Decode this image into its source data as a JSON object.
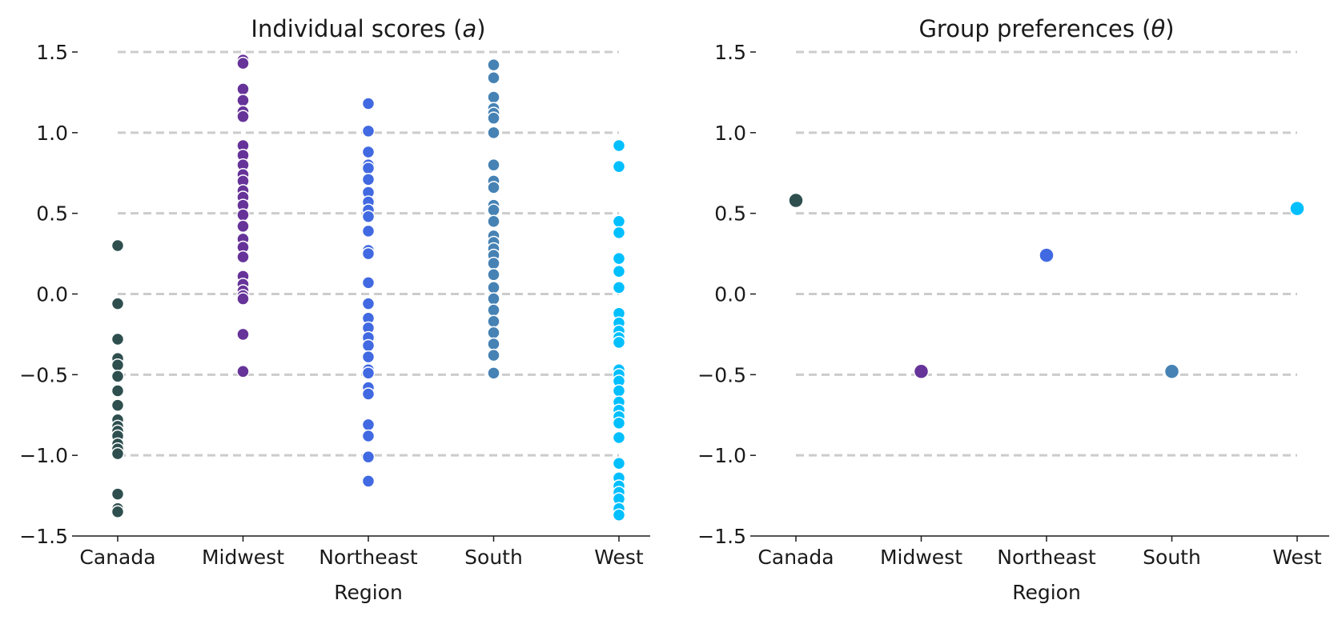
{
  "chart_data": [
    {
      "type": "scatter",
      "title": "Individual scores (a)",
      "title_plain": "Individual scores (",
      "title_symbol": "a",
      "title_close": ")",
      "xlabel": "Region",
      "ylabel": "",
      "categories": [
        "Canada",
        "Midwest",
        "Northeast",
        "South",
        "West"
      ],
      "ylim": [
        -1.5,
        1.5
      ],
      "yticks": [
        "1.5",
        "1.0",
        "0.5",
        "0.0",
        "−0.5",
        "−1.0",
        "−1.5"
      ],
      "ytick_values": [
        1.5,
        1.0,
        0.5,
        0.0,
        -0.5,
        -1.0,
        -1.5
      ],
      "grid": "horizontal dashed at 1.5, 1.0, 0.5, 0.0, -0.5, -1.0",
      "legend": "none",
      "colors": {
        "Canada": "#2f4f4f",
        "Midwest": "#663399",
        "Northeast": "#4169e1",
        "South": "#4682b4",
        "West": "#00bfff"
      },
      "series": [
        {
          "category": "Canada",
          "values": [
            0.3,
            -0.06,
            -0.28,
            -0.4,
            -0.44,
            -0.51,
            -0.6,
            -0.69,
            -0.78,
            -0.82,
            -0.85,
            -0.88,
            -0.93,
            -0.96,
            -0.99,
            -1.24,
            -1.33,
            -1.35
          ]
        },
        {
          "category": "Midwest",
          "values": [
            1.45,
            1.43,
            1.27,
            1.2,
            1.13,
            1.1,
            0.92,
            0.86,
            0.8,
            0.74,
            0.7,
            0.64,
            0.6,
            0.55,
            0.49,
            0.42,
            0.34,
            0.29,
            0.23,
            0.11,
            0.06,
            0.02,
            -0.01,
            -0.03,
            -0.25,
            -0.48
          ]
        },
        {
          "category": "Northeast",
          "values": [
            1.18,
            1.01,
            0.88,
            0.8,
            0.78,
            0.71,
            0.63,
            0.57,
            0.52,
            0.48,
            0.39,
            0.27,
            0.25,
            0.07,
            -0.06,
            -0.15,
            -0.21,
            -0.27,
            -0.32,
            -0.39,
            -0.47,
            -0.49,
            -0.58,
            -0.62,
            -0.81,
            -0.88,
            -1.01,
            -1.16
          ]
        },
        {
          "category": "South",
          "values": [
            1.42,
            1.34,
            1.22,
            1.15,
            1.12,
            1.09,
            1.0,
            0.8,
            0.7,
            0.66,
            0.55,
            0.52,
            0.45,
            0.36,
            0.32,
            0.28,
            0.24,
            0.19,
            0.12,
            0.04,
            -0.03,
            -0.1,
            -0.17,
            -0.24,
            -0.31,
            -0.38,
            -0.49
          ]
        },
        {
          "category": "West",
          "values": [
            0.92,
            0.79,
            0.45,
            0.38,
            0.22,
            0.14,
            0.04,
            -0.12,
            -0.18,
            -0.23,
            -0.27,
            -0.3,
            -0.47,
            -0.5,
            -0.54,
            -0.6,
            -0.67,
            -0.72,
            -0.76,
            -0.8,
            -0.89,
            -1.05,
            -1.14,
            -1.19,
            -1.23,
            -1.27,
            -1.33,
            -1.37
          ]
        }
      ]
    },
    {
      "type": "scatter",
      "title": "Group preferences (θ)",
      "title_plain": "Group preferences (",
      "title_symbol": "θ",
      "title_close": ")",
      "xlabel": "Region",
      "ylabel": "",
      "categories": [
        "Canada",
        "Midwest",
        "Northeast",
        "South",
        "West"
      ],
      "ylim": [
        -1.5,
        1.5
      ],
      "yticks": [
        "1.5",
        "1.0",
        "0.5",
        "0.0",
        "−0.5",
        "−1.0",
        "−1.5"
      ],
      "ytick_values": [
        1.5,
        1.0,
        0.5,
        0.0,
        -0.5,
        -1.0,
        -1.5
      ],
      "grid": "horizontal dashed at 1.5, 1.0, 0.5, 0.0, -0.5, -1.0",
      "legend": "none",
      "colors": {
        "Canada": "#2f4f4f",
        "Midwest": "#663399",
        "Northeast": "#4169e1",
        "South": "#4682b4",
        "West": "#00bfff"
      },
      "points": [
        {
          "category": "Canada",
          "value": 0.58
        },
        {
          "category": "Midwest",
          "value": -0.48
        },
        {
          "category": "Northeast",
          "value": 0.24
        },
        {
          "category": "South",
          "value": -0.48
        },
        {
          "category": "West",
          "value": 0.53
        }
      ]
    }
  ]
}
